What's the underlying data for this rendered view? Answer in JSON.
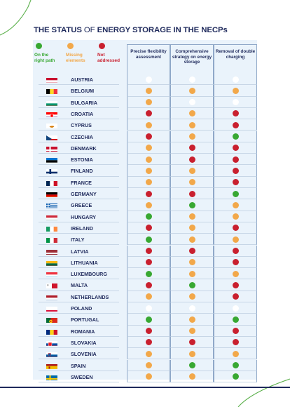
{
  "title": {
    "part1": "THE STATUS",
    "part2": " OF ",
    "part3": "ENERGY STORAGE IN THE NECPs"
  },
  "colors": {
    "green": "#38a832",
    "orange": "#f2a84a",
    "red": "#c9202f",
    "white": "#ffffff",
    "navy": "#1f2a5c"
  },
  "legend": [
    {
      "status": "green",
      "label": "On the right path"
    },
    {
      "status": "orange",
      "label": "Missing elements"
    },
    {
      "status": "red",
      "label": "Not addressed"
    }
  ],
  "columns": [
    {
      "label": "Precise flexibility assessment"
    },
    {
      "label": "Comprehensive strategy on energy storage"
    },
    {
      "label": "Removal of double charging"
    }
  ],
  "rows": [
    {
      "country": "AUSTRIA",
      "flag": "austria",
      "cells": [
        "white",
        "white",
        "white"
      ]
    },
    {
      "country": "BELGIUM",
      "flag": "belgium",
      "cells": [
        "orange",
        "orange",
        "orange"
      ]
    },
    {
      "country": "BULGARIA",
      "flag": "bulgaria",
      "cells": [
        "orange",
        "white",
        "white"
      ]
    },
    {
      "country": "CROATIA",
      "flag": "croatia",
      "cells": [
        "red",
        "orange",
        "red"
      ]
    },
    {
      "country": "CYPRUS",
      "flag": "cyprus",
      "cells": [
        "orange",
        "orange",
        "red"
      ]
    },
    {
      "country": "CZECHIA",
      "flag": "czechia",
      "cells": [
        "red",
        "orange",
        "green"
      ]
    },
    {
      "country": "DENMARK",
      "flag": "denmark",
      "cells": [
        "orange",
        "red",
        "red"
      ]
    },
    {
      "country": "ESTONIA",
      "flag": "estonia",
      "cells": [
        "orange",
        "red",
        "red"
      ]
    },
    {
      "country": "FINLAND",
      "flag": "finland",
      "cells": [
        "orange",
        "orange",
        "red"
      ]
    },
    {
      "country": "FRANCE",
      "flag": "france",
      "cells": [
        "orange",
        "orange",
        "red"
      ]
    },
    {
      "country": "GERMANY",
      "flag": "germany",
      "cells": [
        "red",
        "red",
        "green"
      ]
    },
    {
      "country": "GREECE",
      "flag": "greece",
      "cells": [
        "orange",
        "green",
        "orange"
      ]
    },
    {
      "country": "HUNGARY",
      "flag": "hungary",
      "cells": [
        "green",
        "orange",
        "orange"
      ]
    },
    {
      "country": "IRELAND",
      "flag": "ireland",
      "cells": [
        "red",
        "orange",
        "red"
      ]
    },
    {
      "country": "ITALY",
      "flag": "italy",
      "cells": [
        "green",
        "orange",
        "orange"
      ]
    },
    {
      "country": "LATVIA",
      "flag": "latvia",
      "cells": [
        "red",
        "red",
        "red"
      ]
    },
    {
      "country": "LITHUANIA",
      "flag": "lithuania",
      "cells": [
        "red",
        "orange",
        "red"
      ]
    },
    {
      "country": "LUXEMBOURG",
      "flag": "luxembourg",
      "cells": [
        "green",
        "orange",
        "orange"
      ]
    },
    {
      "country": "MALTA",
      "flag": "malta",
      "cells": [
        "red",
        "green",
        "red"
      ]
    },
    {
      "country": "NETHERLANDS",
      "flag": "netherlands",
      "cells": [
        "orange",
        "orange",
        "red"
      ]
    },
    {
      "country": "POLAND",
      "flag": "poland",
      "cells": [
        "white",
        "white",
        "white"
      ]
    },
    {
      "country": "PORTUGAL",
      "flag": "portugal",
      "cells": [
        "green",
        "orange",
        "green"
      ]
    },
    {
      "country": "ROMANIA",
      "flag": "romania",
      "cells": [
        "red",
        "orange",
        "red"
      ]
    },
    {
      "country": "SLOVAKIA",
      "flag": "slovakia",
      "cells": [
        "red",
        "red",
        "red"
      ]
    },
    {
      "country": "SLOVENIA",
      "flag": "slovenia",
      "cells": [
        "orange",
        "orange",
        "orange"
      ]
    },
    {
      "country": "SPAIN",
      "flag": "spain",
      "cells": [
        "orange",
        "green",
        "green"
      ]
    },
    {
      "country": "SWEDEN",
      "flag": "sweden",
      "cells": [
        "orange",
        "orange",
        "green"
      ]
    }
  ]
}
